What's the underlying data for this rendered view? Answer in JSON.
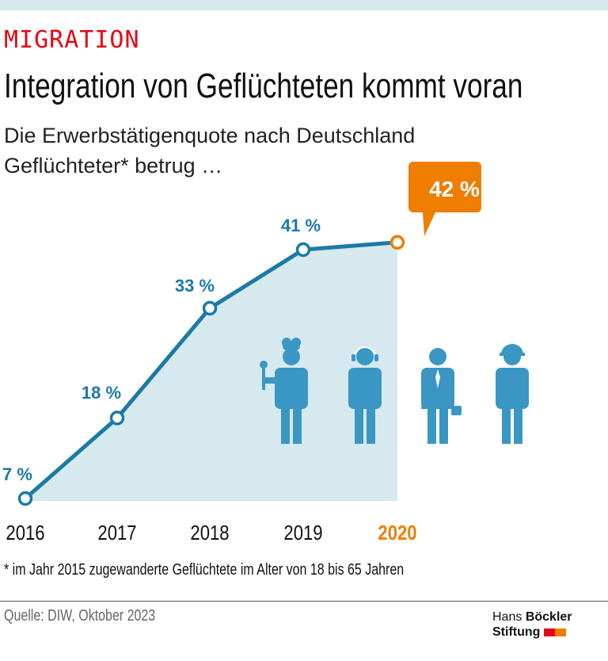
{
  "kicker": "MIGRATION",
  "title": "Integration von Geflüchteten kommt voran",
  "subtitle_line1": "Die Erwerbstätigenquote nach Deutschland",
  "subtitle_line2": "Geflüchteter* betrug …",
  "footnote": "* im Jahr 2015 zugewanderte Geflüchtete im Alter von 18 bis 65 Jahren",
  "source": "Quelle: DIW, Oktober 2023",
  "logo": {
    "line1_a": "Hans",
    "line1_b": "Böckler",
    "line2": "Stiftung"
  },
  "colors": {
    "line": "#1b7aa6",
    "area": "#d6e9ee",
    "highlight": "#ee7d00",
    "kicker": "#e30613",
    "icons": "#3a97c4",
    "logo_red": "#e30613",
    "logo_orange": "#ee7d00"
  },
  "icons": [
    "chef-icon",
    "call-center-agent-icon",
    "business-person-icon",
    "construction-worker-icon"
  ],
  "chart_data": {
    "type": "area",
    "categories": [
      "2016",
      "2017",
      "2018",
      "2019",
      "2020"
    ],
    "values": [
      7,
      18,
      33,
      41,
      42
    ],
    "labels": [
      "7 %",
      "18 %",
      "33 %",
      "41 %",
      "42 %"
    ],
    "highlight_index": 4,
    "grid": false,
    "legend": "none"
  }
}
